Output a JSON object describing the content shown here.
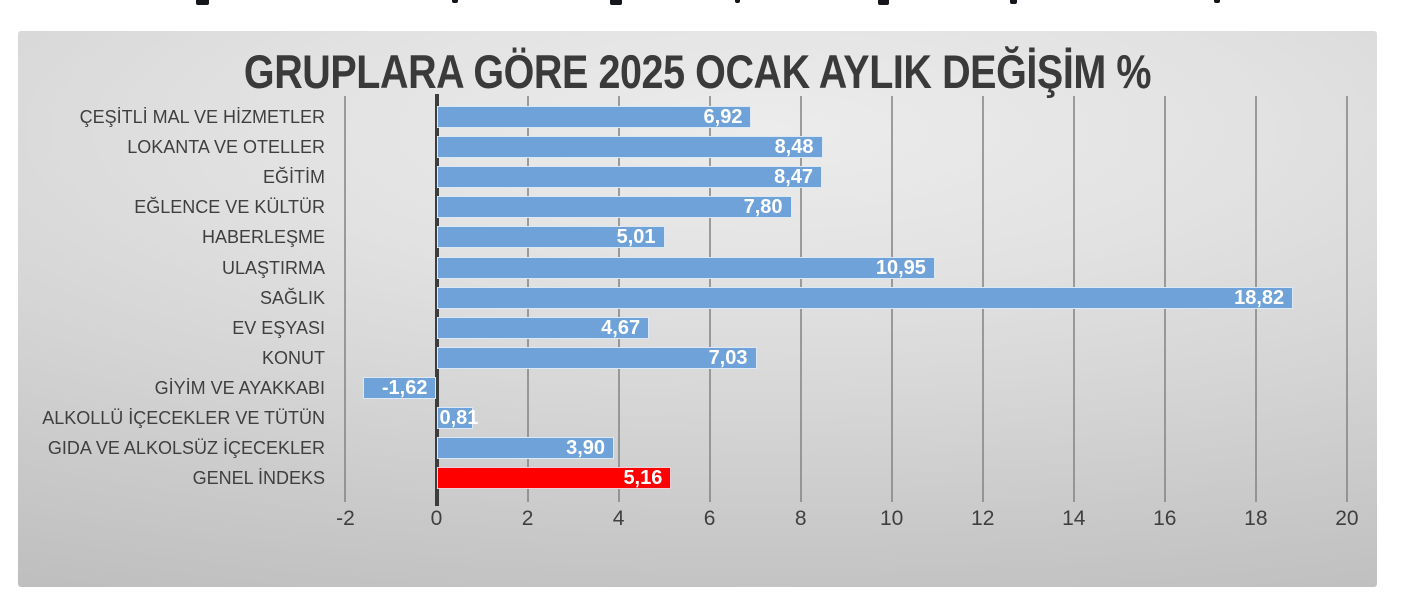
{
  "chart_data": {
    "type": "bar",
    "orientation": "horizontal",
    "title": "GRUPLARA GÖRE 2025 OCAK AYLIK DEĞİŞİM %",
    "categories": [
      "ÇEŞİTLİ MAL VE HİZMETLER",
      "LOKANTA VE OTELLER",
      "EĞİTİM",
      "EĞLENCE VE KÜLTÜR",
      "HABERLEŞME",
      "ULAŞTIRMA",
      "SAĞLIK",
      "EV EŞYASI",
      "KONUT",
      "GİYİM VE AYAKKABI",
      "ALKOLLÜ İÇECEKLER VE TÜTÜN",
      "GIDA VE ALKOLSÜZ İÇECEKLER",
      "GENEL İNDEKS"
    ],
    "values": [
      6.92,
      8.48,
      8.47,
      7.8,
      5.01,
      10.95,
      18.82,
      4.67,
      7.03,
      -1.62,
      0.81,
      3.9,
      5.16
    ],
    "value_labels": [
      "6,92",
      "8,48",
      "8,47",
      "7,80",
      "5,01",
      "10,95",
      "18,82",
      "4,67",
      "7,03",
      "-1,62",
      "0,81",
      "3,90",
      "5,16"
    ],
    "x_ticks": [
      -2,
      0,
      2,
      4,
      6,
      8,
      10,
      12,
      14,
      16,
      18,
      20
    ],
    "x_tick_labels": [
      "-2",
      "0",
      "2",
      "4",
      "6",
      "8",
      "10",
      "12",
      "14",
      "16",
      "18",
      "20"
    ],
    "xlim": [
      -2,
      20
    ],
    "gridlines": true,
    "legend": "none",
    "highlight_category": "GENEL İNDEKS",
    "bar_color": "#6FA2D8",
    "highlight_color": "#FF0000",
    "value_label_color": "#FFFFFF",
    "gridline_color": "#828282",
    "axis_line_color": "#3D3D3D",
    "text_color": "#3F3F3F",
    "title_color": "#3A3A3A"
  }
}
